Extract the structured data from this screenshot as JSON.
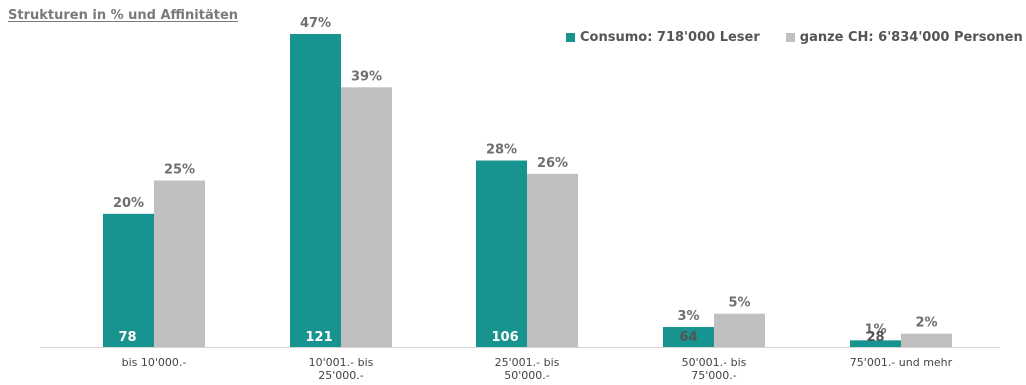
{
  "colors": {
    "consumo": "#17948f",
    "ch": "#c0c0c0",
    "axis": "#d4d4d4"
  },
  "chart_data": {
    "type": "bar",
    "title": "Strukturen in % und Affinitäten",
    "categories": [
      [
        "bis 10'000.-"
      ],
      [
        "10'001.- bis",
        "25'000.-"
      ],
      [
        "25'001.- bis",
        "50'000.-"
      ],
      [
        "50'001.- bis",
        "75'000.-"
      ],
      [
        "75'001.- und mehr"
      ]
    ],
    "ylim": [
      0,
      50
    ],
    "legend_position": "top-right",
    "series": [
      {
        "name": "Consumo: 718'000 Leser",
        "values": [
          20,
          47,
          28,
          3,
          1
        ],
        "labels": [
          "20%",
          "47%",
          "28%",
          "3%",
          "1%"
        ],
        "affinity": [
          "78",
          "121",
          "106",
          "64",
          "28"
        ]
      },
      {
        "name": "ganze CH: 6'834'000 Personen",
        "values": [
          25,
          39,
          26,
          5,
          2
        ],
        "labels": [
          "25%",
          "39%",
          "26%",
          "5%",
          "2%"
        ]
      }
    ]
  }
}
